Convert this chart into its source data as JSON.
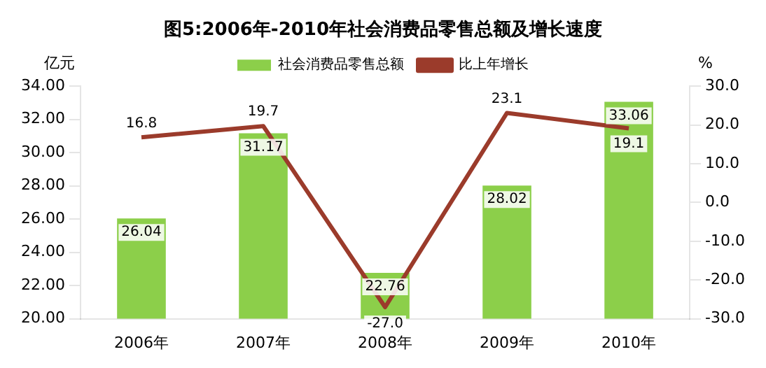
{
  "chart_data": {
    "type": "bar",
    "title": "图5:2006年-2010年社会消费品零售总额及增长速度",
    "ylabel": "亿元",
    "y2label": "%",
    "categories": [
      "2006年",
      "2007年",
      "2008年",
      "2009年",
      "2010年"
    ],
    "series": [
      {
        "name": "社会消费品零售总额",
        "color": "#8ccf4a",
        "values": [
          26.04,
          31.17,
          22.76,
          28.02,
          33.06
        ],
        "value_labels": [
          "26.04",
          "31.17",
          "22.76",
          "28.02",
          "33.06"
        ]
      },
      {
        "name": "比上年增长",
        "type": "line",
        "axis": "y2",
        "color": "#9b3b2b",
        "values": [
          16.8,
          19.7,
          -27.0,
          23.1,
          19.1
        ],
        "value_labels": [
          "16.8",
          "19.7",
          "-27.0",
          "23.1",
          "19.1"
        ],
        "marker": "none",
        "line_style": "solid"
      }
    ],
    "ylim": [
      20,
      34
    ],
    "yticks": [
      {
        "value": 20,
        "label": "20.00"
      },
      {
        "value": 22,
        "label": "22.00"
      },
      {
        "value": 24,
        "label": "24.00"
      },
      {
        "value": 26,
        "label": "26.00"
      },
      {
        "value": 28,
        "label": "28.00"
      },
      {
        "value": 30,
        "label": "30.00"
      },
      {
        "value": 32,
        "label": "32.00"
      },
      {
        "value": 34,
        "label": "34.00"
      }
    ],
    "y2lim": [
      -30,
      30
    ],
    "y2ticks": [
      {
        "value": -30,
        "label": "-30.0"
      },
      {
        "value": -20,
        "label": "-20.0"
      },
      {
        "value": -10,
        "label": "-10.0"
      },
      {
        "value": 0,
        "label": "0.0"
      },
      {
        "value": 10,
        "label": "10.0"
      },
      {
        "value": 20,
        "label": "20.0"
      },
      {
        "value": 30,
        "label": "30.0"
      }
    ],
    "grid": false,
    "legend": "top"
  }
}
